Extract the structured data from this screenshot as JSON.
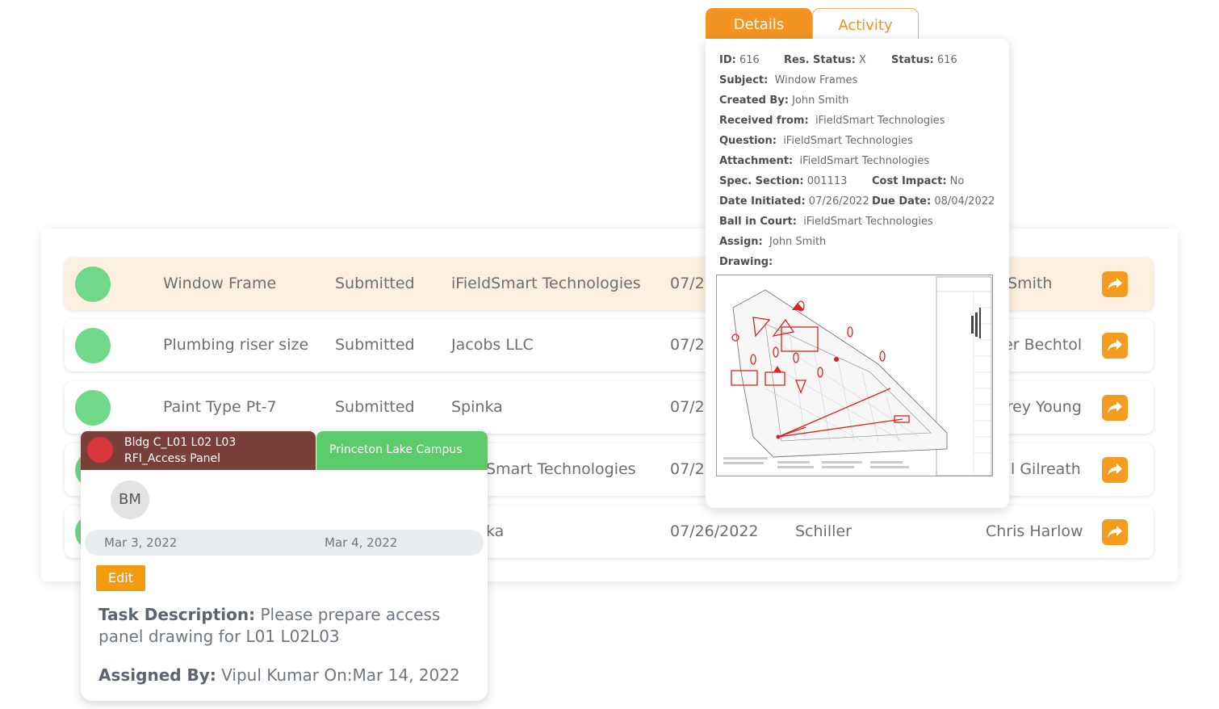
{
  "rows": [
    {
      "subject": "Window Frame",
      "status": "Submitted",
      "from": "iFieldSmart Technologies",
      "date": "07/26",
      "ball": "",
      "assigned": "n Smith"
    },
    {
      "subject": "Plumbing riser size",
      "status": "Submitted",
      "from": "Jacobs LLC",
      "date": "07/26",
      "ball": "",
      "assigned": "ger Bechtol"
    },
    {
      "subject": "Paint Type Pt-7",
      "status": "Submitted",
      "from": "Spinka",
      "date": "07/26",
      "ball": "",
      "assigned": "frey Young"
    },
    {
      "subject": "",
      "status": "",
      "from": "Smart Technologies",
      "date": "07/26",
      "ball": "",
      "assigned": "l Gilreath"
    },
    {
      "subject": "",
      "status": "",
      "from": "ka",
      "date": "07/26/2022",
      "ball": "Schiller",
      "assigned": "Chris Harlow"
    }
  ],
  "task_card": {
    "header_line1": "Bldg C_L01 L02 L03",
    "header_line2": "RFI_Access Panel",
    "project": "Princeton Lake Campus",
    "avatar_initials": "BM",
    "start_date": "Mar 3, 2022",
    "end_date": "Mar 4, 2022",
    "edit_label": "Edit",
    "desc_label": "Task Description:",
    "desc_text": " Please prepare access panel drawing for L01 L02L03",
    "assigned_label": "Assigned By:",
    "assigned_text": " Vipul Kumar On:Mar 14, 2022"
  },
  "details": {
    "tab_details": "Details",
    "tab_activity": "Activity",
    "id_label": "ID:",
    "id_value": "616",
    "res_status_label": "Res. Status:",
    "res_status_value": "X",
    "status_label": "Status:",
    "status_value": "616",
    "subject_label": "Subject:",
    "subject_value": "Window Frames",
    "created_by_label": "Created By:",
    "created_by_value": "John Smith",
    "received_from_label": "Received from:",
    "received_from_value": "iFieldSmart Technologies",
    "question_label": "Question:",
    "question_value": "iFieldSmart Technologies",
    "attachment_label": "Attachment:",
    "attachment_value": "iFieldSmart Technologies",
    "spec_section_label": "Spec. Section:",
    "spec_section_value": "001113",
    "cost_impact_label": "Cost Impact:",
    "cost_impact_value": "No",
    "date_initiated_label": "Date Initiated:",
    "date_initiated_value": "07/26/2022",
    "due_date_label": "Due Date:",
    "due_date_value": "08/04/2022",
    "ball_in_court_label": "Ball in Court:",
    "ball_in_court_value": "iFieldSmart Technologies",
    "assign_label": "Assign:",
    "assign_value": "John Smith",
    "drawing_label": "Drawing:"
  },
  "colors": {
    "accent_orange": "#f29322",
    "status_green": "#6fd989",
    "task_header_brown": "#7a3f38",
    "project_green": "#5ccc6a",
    "markup_red": "#e0201c"
  }
}
